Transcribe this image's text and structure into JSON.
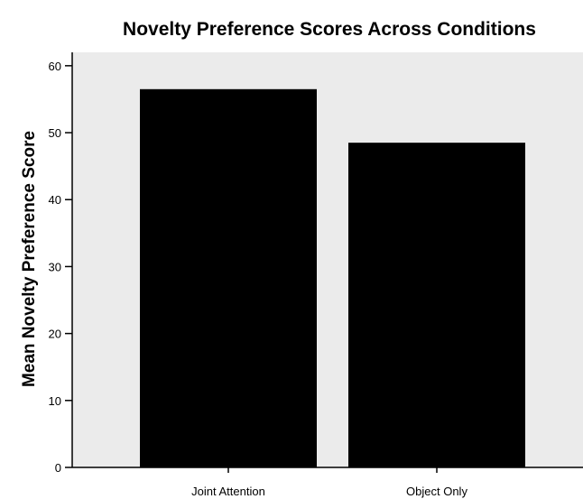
{
  "chart_data": {
    "type": "bar",
    "title": "Novelty Preference Scores Across Conditions",
    "xlabel": "",
    "ylabel": "Mean Novelty Preference Score",
    "categories": [
      "Joint Attention",
      "Object Only"
    ],
    "values": [
      56.5,
      48.5
    ],
    "ylim": [
      0,
      62
    ],
    "yticks": [
      0,
      10,
      20,
      30,
      40,
      50,
      60
    ],
    "grid": false,
    "colors": {
      "bar": "#000000",
      "plot_background": "#ebebeb",
      "axis": "#000000"
    }
  }
}
